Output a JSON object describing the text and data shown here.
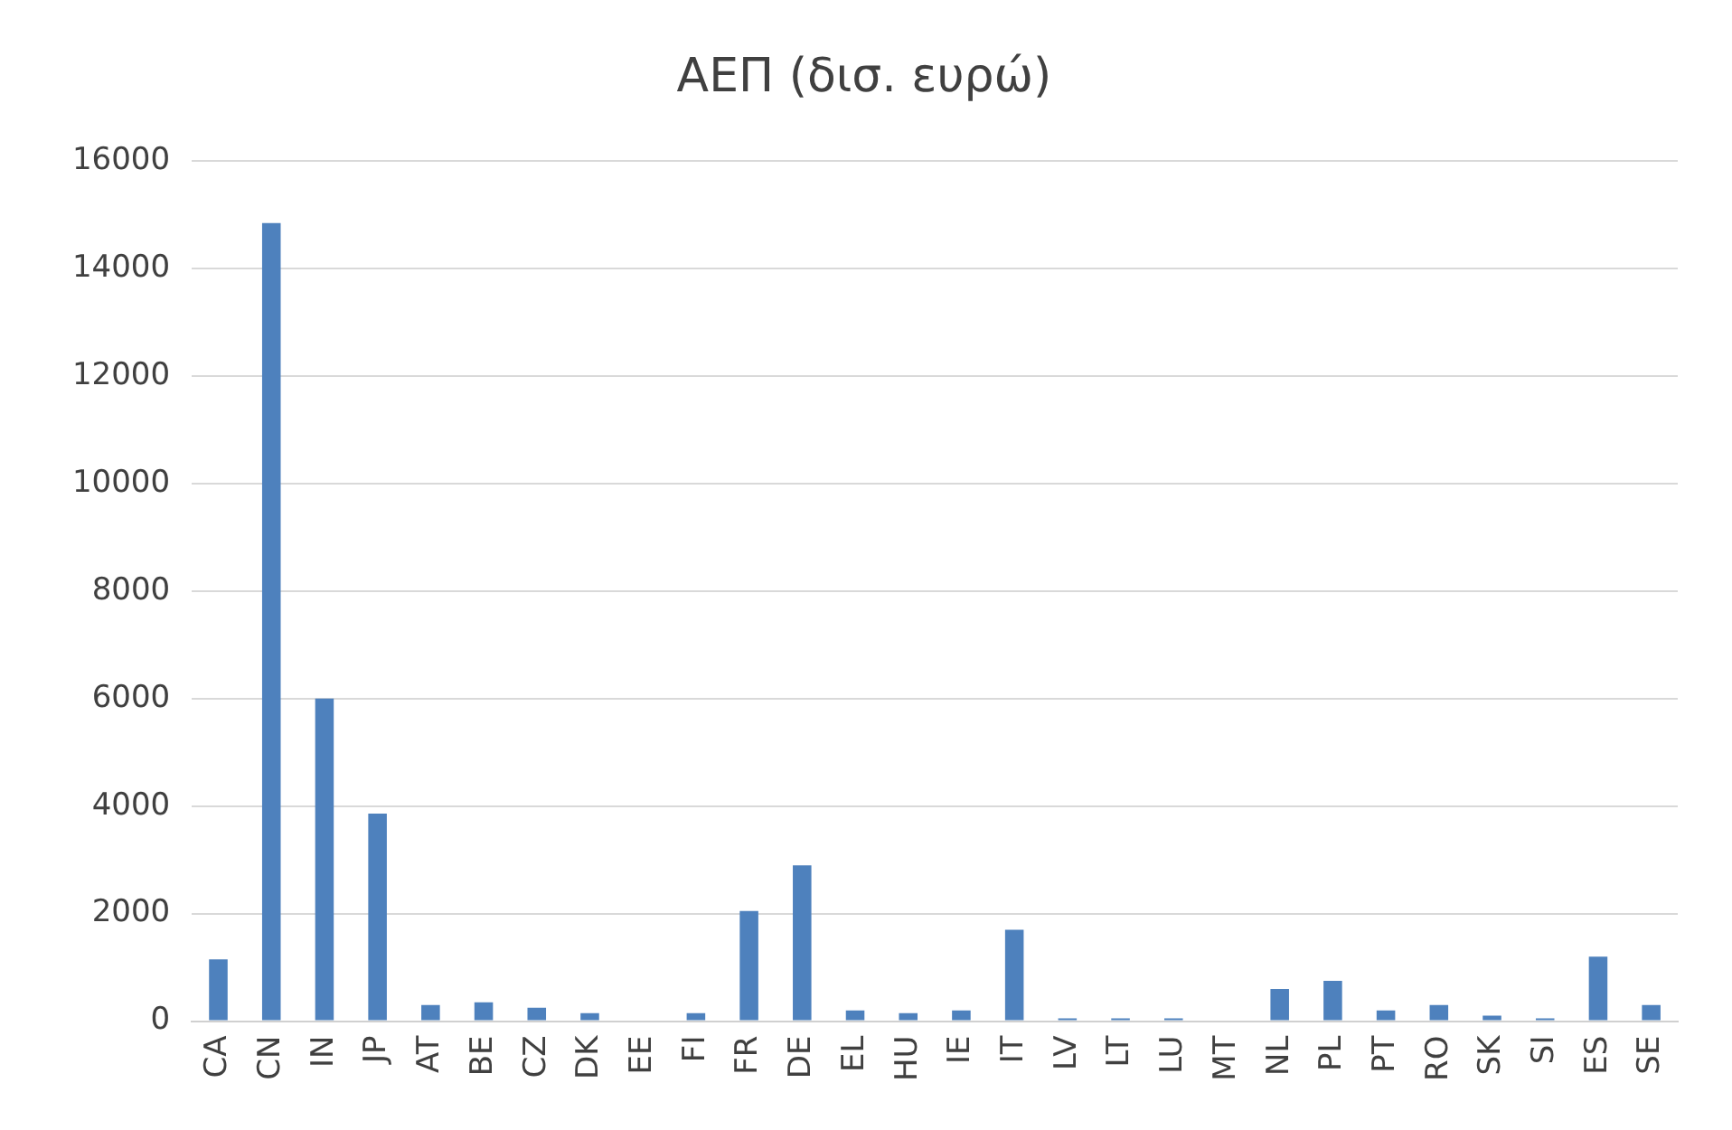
{
  "chart_data": {
    "type": "bar",
    "title": "ΑΕΠ (δισ. ευρώ)",
    "categories": [
      "CA",
      "CN",
      "IN",
      "JP",
      "AT",
      "BE",
      "CZ",
      "DK",
      "EE",
      "FI",
      "FR",
      "DE",
      "EL",
      "HU",
      "IE",
      "IT",
      "LV",
      "LT",
      "LU",
      "MT",
      "NL",
      "PL",
      "PT",
      "RO",
      "SK",
      "SI",
      "ES",
      "SE"
    ],
    "values": [
      1150,
      14850,
      6000,
      3860,
      300,
      350,
      250,
      150,
      null,
      150,
      2050,
      2900,
      200,
      150,
      200,
      1700,
      50,
      50,
      50,
      null,
      600,
      750,
      200,
      300,
      100,
      50,
      1200,
      300
    ],
    "color": "#4e81bd",
    "ylim": [
      0,
      16000
    ],
    "yticks": [
      0,
      2000,
      4000,
      6000,
      8000,
      10000,
      12000,
      14000,
      16000
    ],
    "grid": "y"
  }
}
